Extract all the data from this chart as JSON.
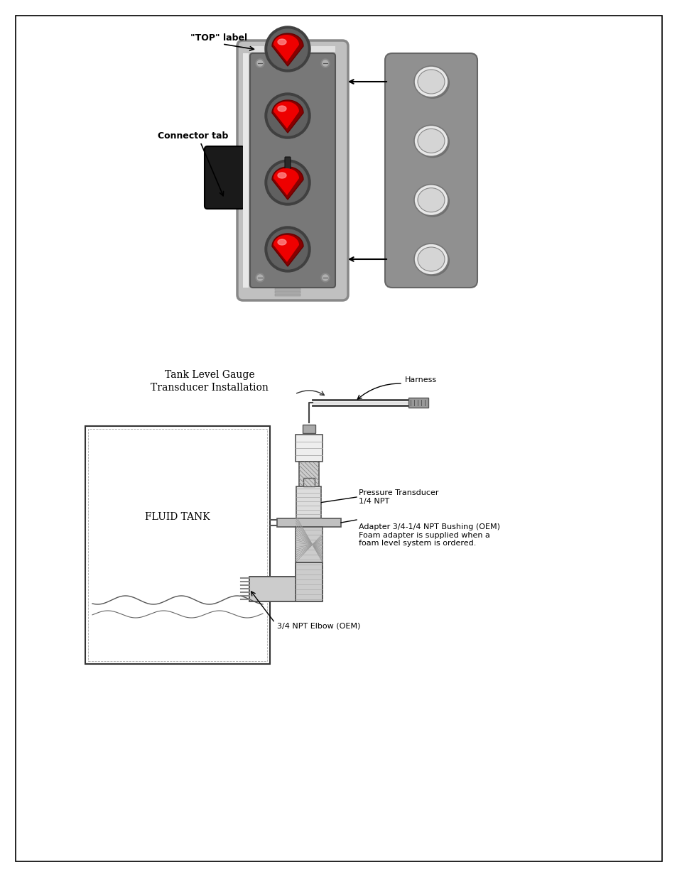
{
  "page_bg": "#ffffff",
  "border_color": "#000000",
  "title1": "Tank Level Gauge",
  "title2": "Transducer Installation",
  "label_top": "\"TOP\" label",
  "label_connector": "Connector tab",
  "label_harness": "Harness",
  "label_pressure": "Pressure Transducer\n1/4 NPT",
  "label_adapter": "Adapter 3/4-1/4 NPT Bushing (OEM)\nFoam adapter is supplied when a\nfoam level system is ordered.",
  "label_elbow": "3/4 NPT Elbow (OEM)",
  "label_fluid_tank": "FLUID TANK",
  "dev_body_color": "#c0c0c0",
  "dev_face_color": "#a0a0a0",
  "dev_chrome": "#d8d8d8",
  "dev_black": "#1a1a1a",
  "led_red": "#ee0000",
  "led_red_dark": "#880000",
  "led_highlight": "#ff8888",
  "plate_color": "#909090",
  "plate_hole_color": "#e8e8e8",
  "line_color": "#333333",
  "text_color": "#000000",
  "ann_fs": 8,
  "title_fs": 10
}
